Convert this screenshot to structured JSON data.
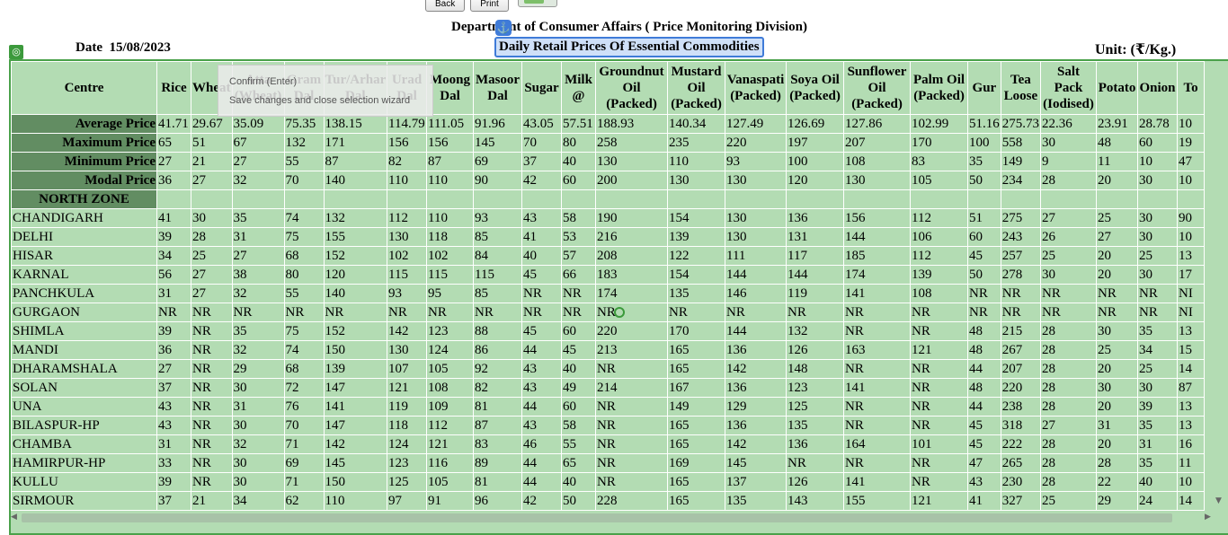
{
  "toolbar": {
    "back_label": "Back",
    "print_label": "Print"
  },
  "header": {
    "department": "Department of Consumer Affairs ( Price Monitoring Division)",
    "subtitle": "Daily Retail Prices Of Essential Commodities",
    "date_label": "Date",
    "date_value": "15/08/2023",
    "unit": "Unit: (₹/Kg.)"
  },
  "tooltip": {
    "title": "Confirm (Enter)",
    "subtitle": "Save changes and close selection wizard"
  },
  "columns": [
    "Centre",
    "Rice",
    "Wheat",
    "Atta (Wheat)",
    "Gram Dal",
    "Tur/Arhar Dal",
    "Urad Dal",
    "Moong Dal",
    "Masoor Dal",
    "Sugar",
    "Milk @",
    "Groundnut Oil (Packed)",
    "Mustard Oil (Packed)",
    "Vanaspati (Packed)",
    "Soya Oil (Packed)",
    "Sunflower Oil (Packed)",
    "Palm Oil (Packed)",
    "Gur",
    "Tea Loose",
    "Salt Pack (Iodised)",
    "Potato",
    "Onion",
    "To"
  ],
  "stats": [
    {
      "label": "Average Price",
      "values": [
        "41.71",
        "29.67",
        "35.09",
        "75.35",
        "138.15",
        "114.79",
        "111.05",
        "91.96",
        "43.05",
        "57.51",
        "188.93",
        "140.34",
        "127.49",
        "126.69",
        "127.86",
        "102.99",
        "51.16",
        "275.73",
        "22.36",
        "23.91",
        "28.78",
        "10"
      ]
    },
    {
      "label": "Maximum Price",
      "values": [
        "65",
        "51",
        "67",
        "132",
        "171",
        "156",
        "156",
        "145",
        "70",
        "80",
        "258",
        "235",
        "220",
        "197",
        "207",
        "170",
        "100",
        "558",
        "30",
        "48",
        "60",
        "19"
      ]
    },
    {
      "label": "Minimum Price",
      "values": [
        "27",
        "21",
        "27",
        "55",
        "87",
        "82",
        "87",
        "69",
        "37",
        "40",
        "130",
        "110",
        "93",
        "100",
        "108",
        "83",
        "35",
        "149",
        "9",
        "11",
        "10",
        "47"
      ]
    },
    {
      "label": "Modal Price",
      "values": [
        "36",
        "27",
        "32",
        "70",
        "140",
        "110",
        "110",
        "90",
        "42",
        "60",
        "200",
        "130",
        "130",
        "120",
        "130",
        "105",
        "50",
        "234",
        "28",
        "20",
        "30",
        "10"
      ]
    }
  ],
  "zone": "NORTH ZONE",
  "rows": [
    {
      "centre": "CHANDIGARH",
      "values": [
        "41",
        "30",
        "35",
        "74",
        "132",
        "112",
        "110",
        "93",
        "43",
        "58",
        "190",
        "154",
        "130",
        "136",
        "156",
        "112",
        "51",
        "275",
        "27",
        "25",
        "30",
        "90"
      ]
    },
    {
      "centre": "DELHI",
      "values": [
        "39",
        "28",
        "31",
        "75",
        "155",
        "130",
        "118",
        "85",
        "41",
        "53",
        "216",
        "139",
        "130",
        "131",
        "144",
        "106",
        "60",
        "243",
        "26",
        "27",
        "30",
        "10"
      ]
    },
    {
      "centre": "HISAR",
      "values": [
        "34",
        "25",
        "27",
        "68",
        "152",
        "102",
        "102",
        "84",
        "40",
        "57",
        "208",
        "122",
        "111",
        "117",
        "185",
        "112",
        "45",
        "257",
        "25",
        "20",
        "25",
        "13"
      ]
    },
    {
      "centre": "KARNAL",
      "values": [
        "56",
        "27",
        "38",
        "80",
        "120",
        "115",
        "115",
        "115",
        "45",
        "66",
        "183",
        "154",
        "144",
        "144",
        "174",
        "139",
        "50",
        "278",
        "30",
        "20",
        "30",
        "17"
      ]
    },
    {
      "centre": "PANCHKULA",
      "values": [
        "31",
        "27",
        "32",
        "55",
        "140",
        "93",
        "95",
        "85",
        "NR",
        "NR",
        "174",
        "135",
        "146",
        "119",
        "141",
        "108",
        "NR",
        "NR",
        "NR",
        "NR",
        "NR",
        "NI"
      ]
    },
    {
      "centre": "GURGAON",
      "values": [
        "NR",
        "NR",
        "NR",
        "NR",
        "NR",
        "NR",
        "NR",
        "NR",
        "NR",
        "NR",
        "NR",
        "NR",
        "NR",
        "NR",
        "NR",
        "NR",
        "NR",
        "NR",
        "NR",
        "NR",
        "NR",
        "NI"
      ]
    },
    {
      "centre": "SHIMLA",
      "values": [
        "39",
        "NR",
        "35",
        "75",
        "152",
        "142",
        "123",
        "88",
        "45",
        "60",
        "220",
        "170",
        "144",
        "132",
        "NR",
        "NR",
        "48",
        "215",
        "28",
        "30",
        "35",
        "13"
      ]
    },
    {
      "centre": "MANDI",
      "values": [
        "36",
        "NR",
        "32",
        "74",
        "150",
        "130",
        "124",
        "86",
        "44",
        "45",
        "213",
        "165",
        "136",
        "126",
        "163",
        "121",
        "48",
        "267",
        "28",
        "25",
        "34",
        "15"
      ]
    },
    {
      "centre": "DHARAMSHALA",
      "values": [
        "27",
        "NR",
        "29",
        "68",
        "139",
        "107",
        "105",
        "92",
        "43",
        "40",
        "NR",
        "165",
        "142",
        "148",
        "NR",
        "NR",
        "44",
        "207",
        "28",
        "20",
        "25",
        "14"
      ]
    },
    {
      "centre": "SOLAN",
      "values": [
        "37",
        "NR",
        "30",
        "72",
        "147",
        "121",
        "108",
        "82",
        "43",
        "49",
        "214",
        "167",
        "136",
        "123",
        "141",
        "NR",
        "48",
        "220",
        "28",
        "30",
        "30",
        "87"
      ]
    },
    {
      "centre": "UNA",
      "values": [
        "43",
        "NR",
        "31",
        "76",
        "141",
        "119",
        "109",
        "81",
        "44",
        "60",
        "NR",
        "149",
        "129",
        "125",
        "NR",
        "NR",
        "44",
        "238",
        "28",
        "20",
        "39",
        "13"
      ]
    },
    {
      "centre": "BILASPUR-HP",
      "values": [
        "43",
        "NR",
        "30",
        "70",
        "147",
        "118",
        "112",
        "87",
        "43",
        "58",
        "NR",
        "165",
        "136",
        "135",
        "NR",
        "NR",
        "45",
        "318",
        "27",
        "31",
        "35",
        "13"
      ]
    },
    {
      "centre": "CHAMBA",
      "values": [
        "31",
        "NR",
        "32",
        "71",
        "142",
        "124",
        "121",
        "83",
        "46",
        "55",
        "NR",
        "165",
        "142",
        "136",
        "164",
        "101",
        "45",
        "222",
        "28",
        "20",
        "31",
        "16"
      ]
    },
    {
      "centre": "HAMIRPUR-HP",
      "values": [
        "33",
        "NR",
        "30",
        "69",
        "145",
        "123",
        "116",
        "89",
        "44",
        "65",
        "NR",
        "169",
        "145",
        "NR",
        "NR",
        "NR",
        "47",
        "265",
        "28",
        "28",
        "35",
        "11"
      ]
    },
    {
      "centre": "KULLU",
      "values": [
        "39",
        "NR",
        "30",
        "71",
        "150",
        "125",
        "105",
        "81",
        "44",
        "40",
        "NR",
        "165",
        "137",
        "126",
        "141",
        "NR",
        "43",
        "230",
        "28",
        "22",
        "40",
        "10"
      ]
    },
    {
      "centre": "SIRMOUR",
      "values": [
        "37",
        "21",
        "34",
        "62",
        "110",
        "97",
        "91",
        "96",
        "42",
        "50",
        "228",
        "165",
        "135",
        "143",
        "155",
        "121",
        "41",
        "327",
        "25",
        "29",
        "24",
        "14"
      ]
    }
  ],
  "colors": {
    "table_bg": "#b3dcb3",
    "stat_bg": "#628d62",
    "accent": "#3f7bd8",
    "border_green": "#4aa14a"
  },
  "icons": {
    "anchor": "anchor-icon",
    "frame": "frame-handle-icon",
    "cursor": "cursor-ring-icon"
  }
}
